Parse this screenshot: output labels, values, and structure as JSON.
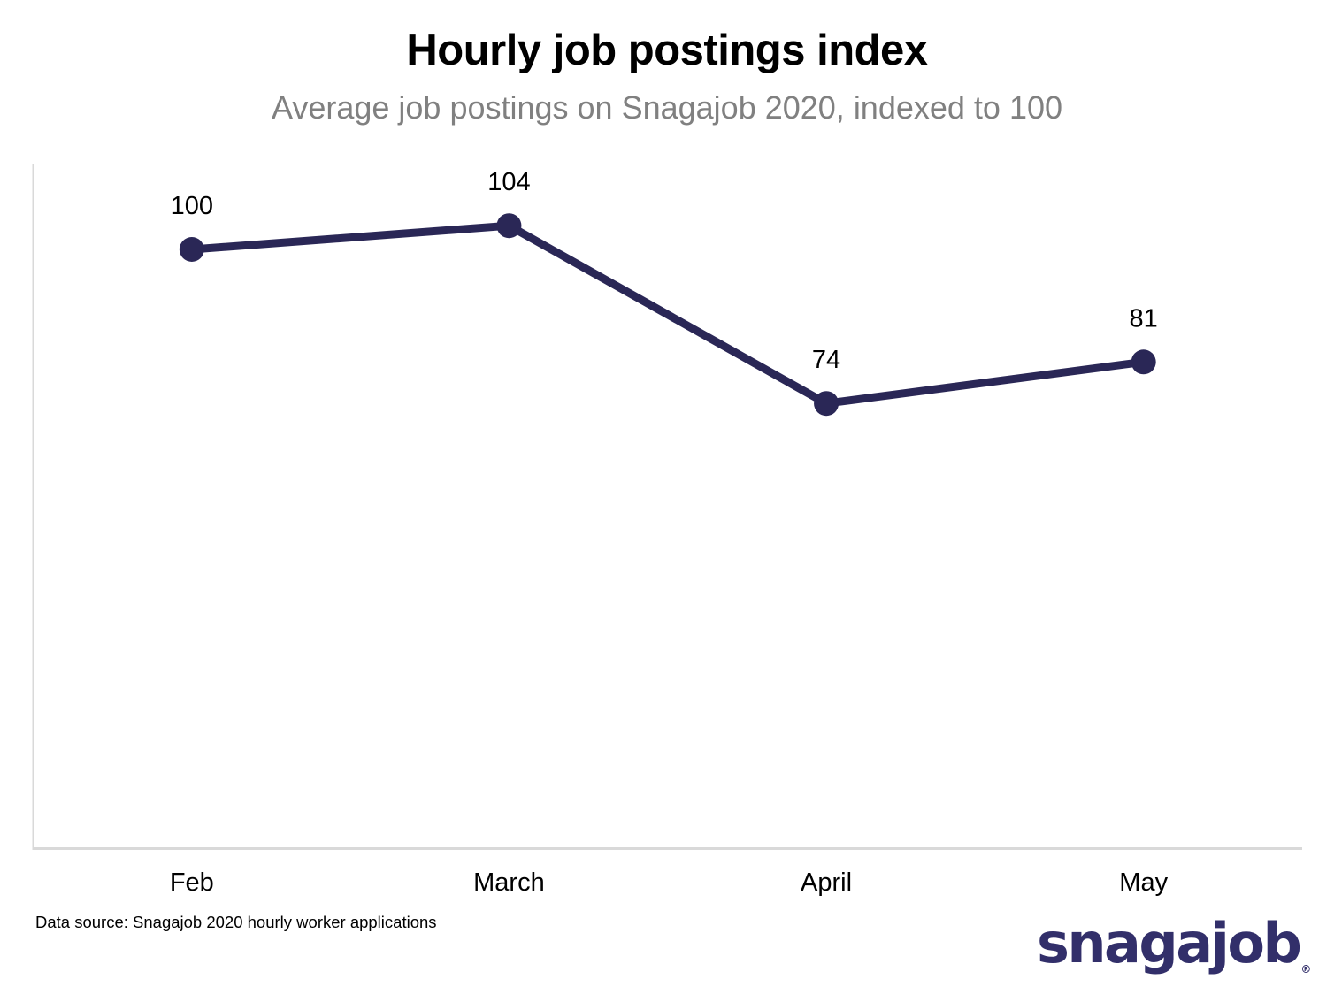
{
  "chart": {
    "title": "Hourly job postings index",
    "subtitle": "Average job postings on Snagajob 2020, indexed to 100",
    "source_note": "Data source: Snagajob 2020 hourly worker applications",
    "brand_logo_text": "snagajob",
    "brand_reg_mark": "®"
  },
  "chart_data": {
    "type": "line",
    "categories": [
      "Feb",
      "March",
      "April",
      "May"
    ],
    "values": [
      100,
      104,
      74,
      81
    ],
    "series": [
      {
        "name": "Hourly job postings index",
        "values": [
          100,
          104,
          74,
          81
        ]
      }
    ],
    "title": "Hourly job postings index",
    "subtitle": "Average job postings on Snagajob 2020, indexed to 100",
    "xlabel": "",
    "ylabel": "",
    "ylim": [
      0,
      115
    ],
    "grid": false,
    "legend": false,
    "data_labels_shown": true,
    "marker_style": "filled-circle",
    "colors": {
      "line": "#2a2756",
      "marker": "#2a2756",
      "axis": "#d9d9d9",
      "value_label": "#000000",
      "category_label": "#000000",
      "title": "#000000",
      "subtitle": "#808080",
      "brand": "#322f6a"
    }
  }
}
